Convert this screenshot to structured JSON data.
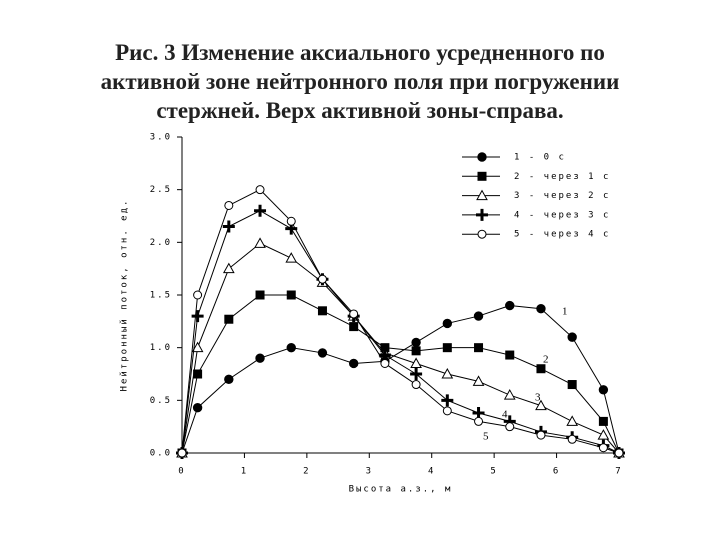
{
  "chart_data": {
    "type": "line",
    "title": "Рис. 3 Изменение аксиального усредненного по активной зоне нейтронного поля при погружении стержней. Верх активной зоны-справа.",
    "x_label": "Высота а.з., м",
    "y_label": "Нейтронный поток, отн. ед.",
    "x": [
      0,
      0.25,
      0.75,
      1.25,
      1.75,
      2.25,
      2.75,
      3.25,
      3.75,
      4.25,
      4.75,
      5.25,
      5.75,
      6.25,
      6.75,
      7
    ],
    "xlim": [
      0,
      7
    ],
    "xticks": [
      0,
      1,
      2,
      3,
      4,
      5,
      6,
      7
    ],
    "ylim": [
      0,
      3
    ],
    "yticks": [
      {
        "value": 0,
        "label": "0.0"
      },
      0.5,
      {
        "value": 1,
        "label": "1.0"
      },
      1.5,
      {
        "value": 2,
        "label": "2.0"
      },
      2.5,
      {
        "value": 3,
        "label": "3.0"
      }
    ],
    "grid": false,
    "legend": "upper right",
    "series": [
      {
        "name": "1 - 0 с",
        "color": "#000000",
        "marker": "filled-circle",
        "values": [
          0,
          0.43,
          0.7,
          0.9,
          1.0,
          0.95,
          0.85,
          0.87,
          1.05,
          1.23,
          1.3,
          1.4,
          1.37,
          1.1,
          0.6,
          0
        ]
      },
      {
        "name": "2 - через 1 с",
        "color": "#000000",
        "marker": "filled-square",
        "values": [
          0,
          0.75,
          1.27,
          1.5,
          1.5,
          1.35,
          1.2,
          1.0,
          0.97,
          1.0,
          1.0,
          0.93,
          0.8,
          0.65,
          0.3,
          0
        ]
      },
      {
        "name": "3 - через 2 с",
        "color": "#000000",
        "marker": "open-triangle",
        "values": [
          0,
          1.0,
          1.75,
          1.99,
          1.85,
          1.62,
          1.3,
          0.95,
          0.85,
          0.75,
          0.68,
          0.55,
          0.45,
          0.3,
          0.17,
          0
        ]
      },
      {
        "name": "4 - через 3 с",
        "color": "#000000",
        "marker": "plus",
        "values": [
          0,
          1.3,
          2.15,
          2.3,
          2.13,
          1.65,
          1.3,
          0.93,
          0.75,
          0.5,
          0.38,
          0.3,
          0.2,
          0.15,
          0.07,
          0
        ]
      },
      {
        "name": "5 - через 4 с",
        "color": "#000000",
        "marker": "open-circle",
        "values": [
          0,
          1.5,
          2.35,
          2.5,
          2.2,
          1.65,
          1.32,
          0.85,
          0.65,
          0.4,
          0.3,
          0.25,
          0.17,
          0.13,
          0.05,
          0
        ]
      }
    ],
    "annotations": [
      "1",
      "2",
      "3",
      "4",
      "5"
    ]
  }
}
